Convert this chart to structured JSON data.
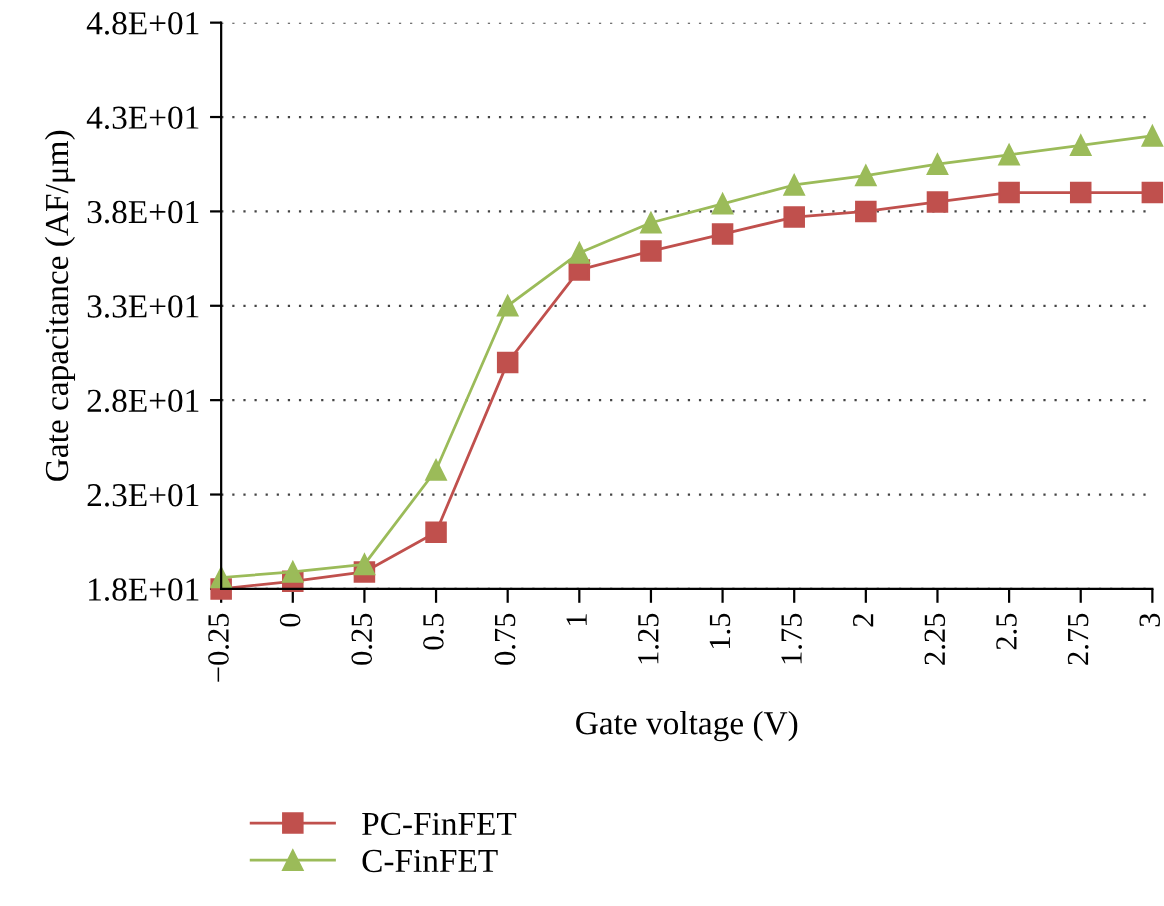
{
  "chart_data": {
    "type": "line",
    "xlabel": "Gate voltage (V)",
    "ylabel": "Gate capacitance (AF/μm)",
    "x": [
      -0.25,
      0,
      0.25,
      0.5,
      0.75,
      1,
      1.25,
      1.5,
      1.75,
      2,
      2.25,
      2.5,
      2.75,
      3
    ],
    "series": [
      {
        "name": "PC-FinFET",
        "color": "#c0504d",
        "marker": "square",
        "values": [
          18.0,
          18.4,
          18.9,
          21.0,
          30.0,
          34.9,
          35.9,
          36.8,
          37.7,
          38.0,
          38.5,
          39.0,
          39.0,
          39.0
        ]
      },
      {
        "name": "C-FinFET",
        "color": "#9bbb59",
        "marker": "triangle",
        "values": [
          18.6,
          18.9,
          19.3,
          24.3,
          33.0,
          35.8,
          37.4,
          38.4,
          39.4,
          39.9,
          40.5,
          41.0,
          41.5,
          42.0
        ]
      }
    ],
    "xlim": [
      -0.25,
      3
    ],
    "xticks": [
      {
        "value": -0.25,
        "label": "−0.25"
      },
      0,
      0.25,
      0.5,
      0.75,
      1,
      1.25,
      1.5,
      1.75,
      2,
      2.25,
      2.5,
      2.75,
      3
    ],
    "ylim": [
      18,
      48
    ],
    "yticks": [
      {
        "value": 18,
        "label": "1.8E+01"
      },
      {
        "value": 23,
        "label": "2.3E+01"
      },
      {
        "value": 28,
        "label": "2.8E+01"
      },
      {
        "value": 33,
        "label": "3.3E+01"
      },
      {
        "value": 38,
        "label": "3.8E+01"
      },
      {
        "value": 43,
        "label": "4.3E+01"
      },
      {
        "value": 48,
        "label": "4.8E+01"
      }
    ],
    "grid": "y",
    "legend": "bottom left",
    "line_style": "solid"
  }
}
